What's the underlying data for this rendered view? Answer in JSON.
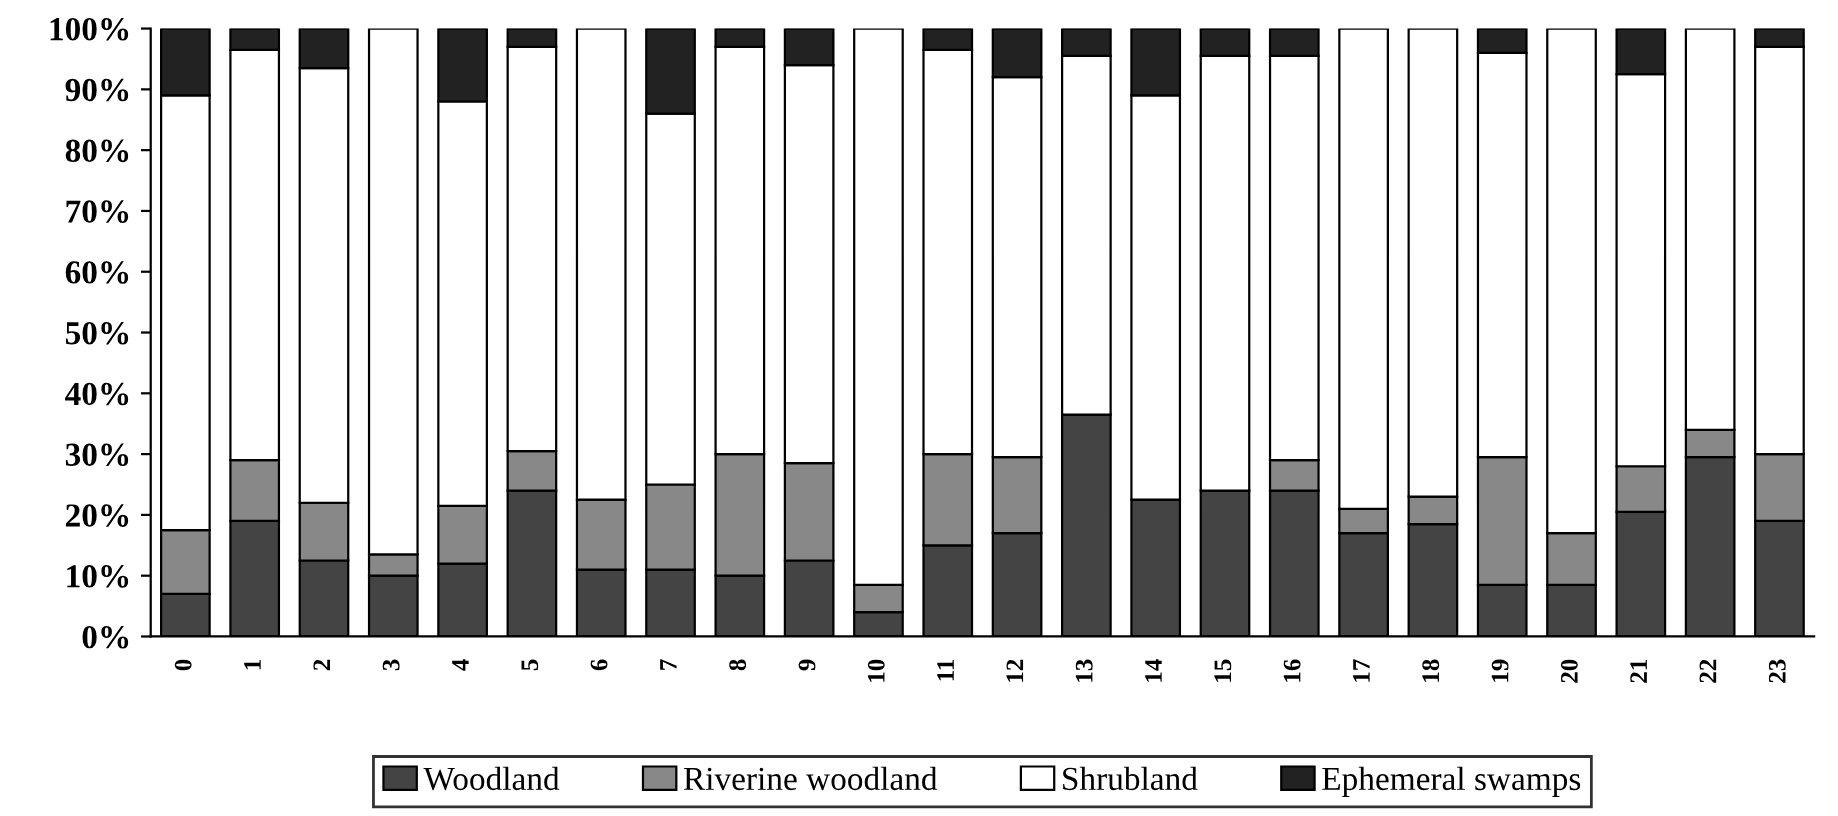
{
  "chart_data": {
    "type": "bar",
    "stacked": true,
    "categories": [
      "0",
      "1",
      "2",
      "3",
      "4",
      "5",
      "6",
      "7",
      "8",
      "9",
      "10",
      "11",
      "12",
      "13",
      "14",
      "15",
      "16",
      "17",
      "18",
      "19",
      "20",
      "21",
      "22",
      "23"
    ],
    "series": [
      {
        "name": "Woodland",
        "color": "#444444",
        "values": [
          7,
          19,
          12.5,
          10,
          12,
          24,
          11,
          11,
          10,
          12.5,
          4,
          15,
          17,
          36.5,
          22.5,
          24,
          24,
          17,
          18.5,
          8.5,
          8.5,
          20.5,
          29.5,
          19
        ]
      },
      {
        "name": "Riverine woodland",
        "color": "#888888",
        "values": [
          10.5,
          10,
          9.5,
          3.5,
          9.5,
          6.5,
          11.5,
          14,
          20,
          16,
          4.5,
          15,
          12.5,
          0,
          0,
          0,
          5,
          4,
          4.5,
          21,
          8.5,
          7.5,
          4.5,
          11
        ]
      },
      {
        "name": "Shrubland",
        "color": "#ffffff",
        "values": [
          71.5,
          67.5,
          71.5,
          86.5,
          66.5,
          66.5,
          77.5,
          61,
          67,
          65.5,
          91.5,
          66.5,
          62.5,
          59,
          66.5,
          71.5,
          66.5,
          79,
          77,
          66.5,
          83,
          64.5,
          66,
          67
        ]
      },
      {
        "name": "Ephemeral swamps",
        "color": "#222222",
        "values": [
          11,
          3.5,
          6.5,
          0,
          12,
          3,
          0,
          14,
          3,
          6,
          0,
          3.5,
          8,
          4.5,
          11,
          4.5,
          4.5,
          0,
          0,
          4,
          0,
          7.5,
          0,
          3
        ]
      }
    ],
    "ylim": [
      0,
      100
    ],
    "yticks": [
      {
        "value": 0,
        "label": "0%"
      },
      {
        "value": 10,
        "label": "10%"
      },
      {
        "value": 20,
        "label": "20%"
      },
      {
        "value": 30,
        "label": "30%"
      },
      {
        "value": 40,
        "label": "40%"
      },
      {
        "value": 50,
        "label": "50%"
      },
      {
        "value": 60,
        "label": "60%"
      },
      {
        "value": 70,
        "label": "70%"
      },
      {
        "value": 80,
        "label": "80%"
      },
      {
        "value": 90,
        "label": "90%"
      },
      {
        "value": 100,
        "label": "100%"
      }
    ],
    "grid": false,
    "legend": "bottom"
  }
}
